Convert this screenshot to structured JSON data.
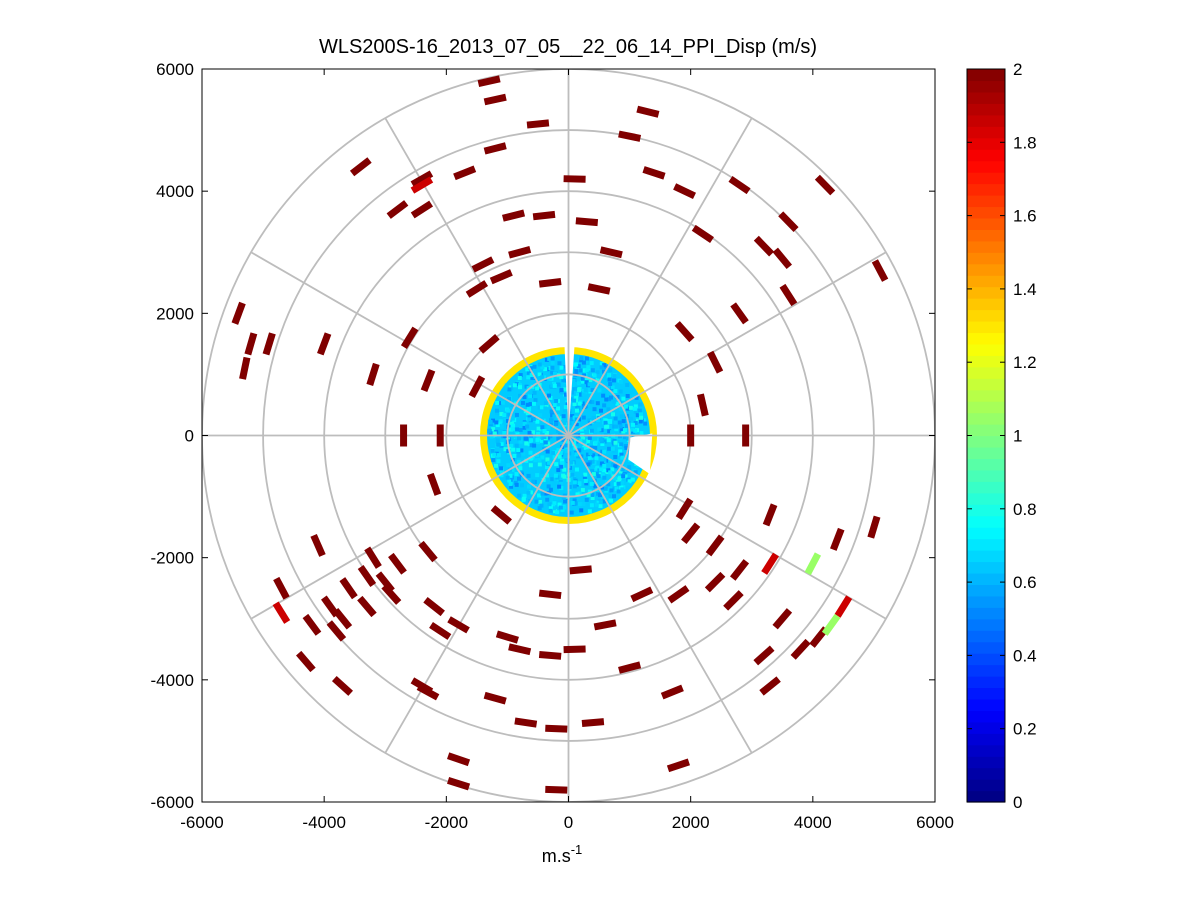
{
  "chart_data": {
    "type": "ppi_polar_scatter",
    "title": "WLS200S-16_2013_07_05__22_06_14_PPI_Disp (m/s)",
    "xlabel": "m.s",
    "xlabel_exponent": "-1",
    "ylabel": "",
    "xlim": [
      -6000,
      6000
    ],
    "ylim": [
      -6000,
      6000
    ],
    "x_ticks": [
      -6000,
      -4000,
      -2000,
      0,
      2000,
      4000,
      6000
    ],
    "y_ticks": [
      -6000,
      -4000,
      -2000,
      0,
      2000,
      4000,
      6000
    ],
    "x_tick_labels": [
      "-6000",
      "-4000",
      "-2000",
      "0",
      "2000",
      "4000",
      "6000"
    ],
    "y_tick_labels": [
      "-6000",
      "-4000",
      "-2000",
      "0",
      "2000",
      "4000",
      "6000"
    ],
    "range_rings_m": [
      1000,
      2000,
      3000,
      4000,
      5000,
      6000
    ],
    "azimuth_spokes_deg": [
      0,
      30,
      60,
      90,
      120,
      150,
      180,
      210,
      240,
      270,
      300,
      330
    ],
    "inner_disc": {
      "radius_m": 1400,
      "value_min": 0.5,
      "value_max": 0.8,
      "edge_value": 1.3
    },
    "colorbar": {
      "min": 0,
      "max": 2,
      "ticks": [
        0,
        0.2,
        0.4,
        0.6,
        0.8,
        1,
        1.2,
        1.4,
        1.6,
        1.8,
        2
      ],
      "tick_labels": [
        "0",
        "0.2",
        "0.4",
        "0.6",
        "0.8",
        "1",
        "1.2",
        "1.4",
        "1.6",
        "1.8",
        "2"
      ],
      "colormap": "jet"
    },
    "point_units": "x_m, y_m, displacement_m_s",
    "points": [
      [
        -1300,
        5800,
        2
      ],
      [
        -1200,
        5500,
        2
      ],
      [
        -500,
        5100,
        2
      ],
      [
        1300,
        5300,
        2
      ],
      [
        1000,
        4900,
        2
      ],
      [
        -3400,
        4400,
        2
      ],
      [
        -2400,
        4200,
        2
      ],
      [
        -1700,
        4300,
        2
      ],
      [
        -1200,
        4700,
        2
      ],
      [
        100,
        4200,
        2
      ],
      [
        1400,
        4300,
        2
      ],
      [
        1900,
        4000,
        2
      ],
      [
        2800,
        4100,
        2
      ],
      [
        4200,
        4100,
        2
      ],
      [
        -2800,
        3700,
        2
      ],
      [
        -2400,
        3700,
        2
      ],
      [
        -900,
        3600,
        2
      ],
      [
        -400,
        3600,
        2
      ],
      [
        300,
        3500,
        2
      ],
      [
        2200,
        3300,
        2
      ],
      [
        3600,
        3500,
        2
      ],
      [
        -800,
        3000,
        2
      ],
      [
        -1400,
        2800,
        2
      ],
      [
        -1100,
        2600,
        2
      ],
      [
        700,
        3000,
        2
      ],
      [
        3200,
        3100,
        2
      ],
      [
        3500,
        2900,
        2
      ],
      [
        5100,
        2700,
        2
      ],
      [
        -1500,
        2400,
        2
      ],
      [
        -300,
        2500,
        2
      ],
      [
        500,
        2400,
        2
      ],
      [
        2800,
        2000,
        2
      ],
      [
        3600,
        2300,
        2
      ],
      [
        -5400,
        2000,
        2
      ],
      [
        -5200,
        1500,
        2
      ],
      [
        -4900,
        1500,
        2
      ],
      [
        -5300,
        1100,
        2
      ],
      [
        -4000,
        1500,
        2
      ],
      [
        -3200,
        1000,
        2
      ],
      [
        -2600,
        1600,
        2
      ],
      [
        -1300,
        1500,
        2
      ],
      [
        -2300,
        900,
        2
      ],
      [
        1900,
        1700,
        2
      ],
      [
        2400,
        1200,
        2
      ],
      [
        -1500,
        800,
        2
      ],
      [
        -2700,
        0,
        2
      ],
      [
        -2100,
        0,
        2
      ],
      [
        2000,
        0,
        2
      ],
      [
        2900,
        0,
        2
      ],
      [
        2200,
        500,
        2
      ],
      [
        -2200,
        -800,
        2
      ],
      [
        -1100,
        -1300,
        2
      ],
      [
        -4100,
        -1800,
        2
      ],
      [
        -3200,
        -2000,
        2
      ],
      [
        -2800,
        -2100,
        2
      ],
      [
        -2300,
        -1900,
        2
      ],
      [
        -3300,
        -2300,
        2
      ],
      [
        -3000,
        -2400,
        2
      ],
      [
        -3600,
        -2500,
        2
      ],
      [
        -2900,
        -2600,
        2
      ],
      [
        -4700,
        -2500,
        2
      ],
      [
        -3900,
        -2800,
        2
      ],
      [
        -3700,
        -3000,
        2
      ],
      [
        -3300,
        -2800,
        2
      ],
      [
        -4200,
        -3100,
        2
      ],
      [
        -3800,
        -3200,
        2
      ],
      [
        -2200,
        -2800,
        2
      ],
      [
        -1800,
        -3100,
        2
      ],
      [
        -2100,
        -3200,
        2
      ],
      [
        -4300,
        -3700,
        2
      ],
      [
        -3700,
        -4100,
        2
      ],
      [
        -2400,
        -4100,
        2
      ],
      [
        -2300,
        -4200,
        2
      ],
      [
        -800,
        -3500,
        2
      ],
      [
        -300,
        -3600,
        2
      ],
      [
        -1000,
        -3300,
        2
      ],
      [
        -300,
        -2600,
        2
      ],
      [
        200,
        -2200,
        2
      ],
      [
        600,
        -3100,
        2
      ],
      [
        100,
        -3500,
        2
      ],
      [
        1000,
        -3800,
        2
      ],
      [
        1200,
        -2600,
        2
      ],
      [
        1800,
        -2600,
        2
      ],
      [
        2400,
        -1800,
        2
      ],
      [
        2400,
        -2400,
        2
      ],
      [
        2800,
        -2200,
        2
      ],
      [
        2700,
        -2700,
        2
      ],
      [
        1900,
        -1200,
        2
      ],
      [
        2000,
        -1600,
        2
      ],
      [
        3300,
        -1300,
        2
      ],
      [
        4400,
        -1700,
        2
      ],
      [
        5000,
        -1500,
        2
      ],
      [
        3500,
        -3000,
        2
      ],
      [
        3800,
        -3500,
        2
      ],
      [
        4100,
        -3300,
        2
      ],
      [
        3200,
        -3600,
        2
      ],
      [
        3300,
        -4100,
        2
      ],
      [
        1700,
        -4200,
        2
      ],
      [
        -1200,
        -4300,
        2
      ],
      [
        -700,
        -4700,
        2
      ],
      [
        -200,
        -4800,
        2
      ],
      [
        400,
        -4700,
        2
      ],
      [
        1800,
        -5400,
        2
      ],
      [
        -1800,
        -5300,
        2
      ],
      [
        -1800,
        -5700,
        2
      ],
      [
        -200,
        -5800,
        2
      ],
      [
        3300,
        -2100,
        1.85
      ],
      [
        4500,
        -2800,
        1.85
      ],
      [
        -4700,
        -2900,
        1.85
      ],
      [
        -2400,
        4100,
        1.85
      ],
      [
        4000,
        -2100,
        1.05
      ],
      [
        4300,
        -3100,
        1.05
      ]
    ]
  }
}
